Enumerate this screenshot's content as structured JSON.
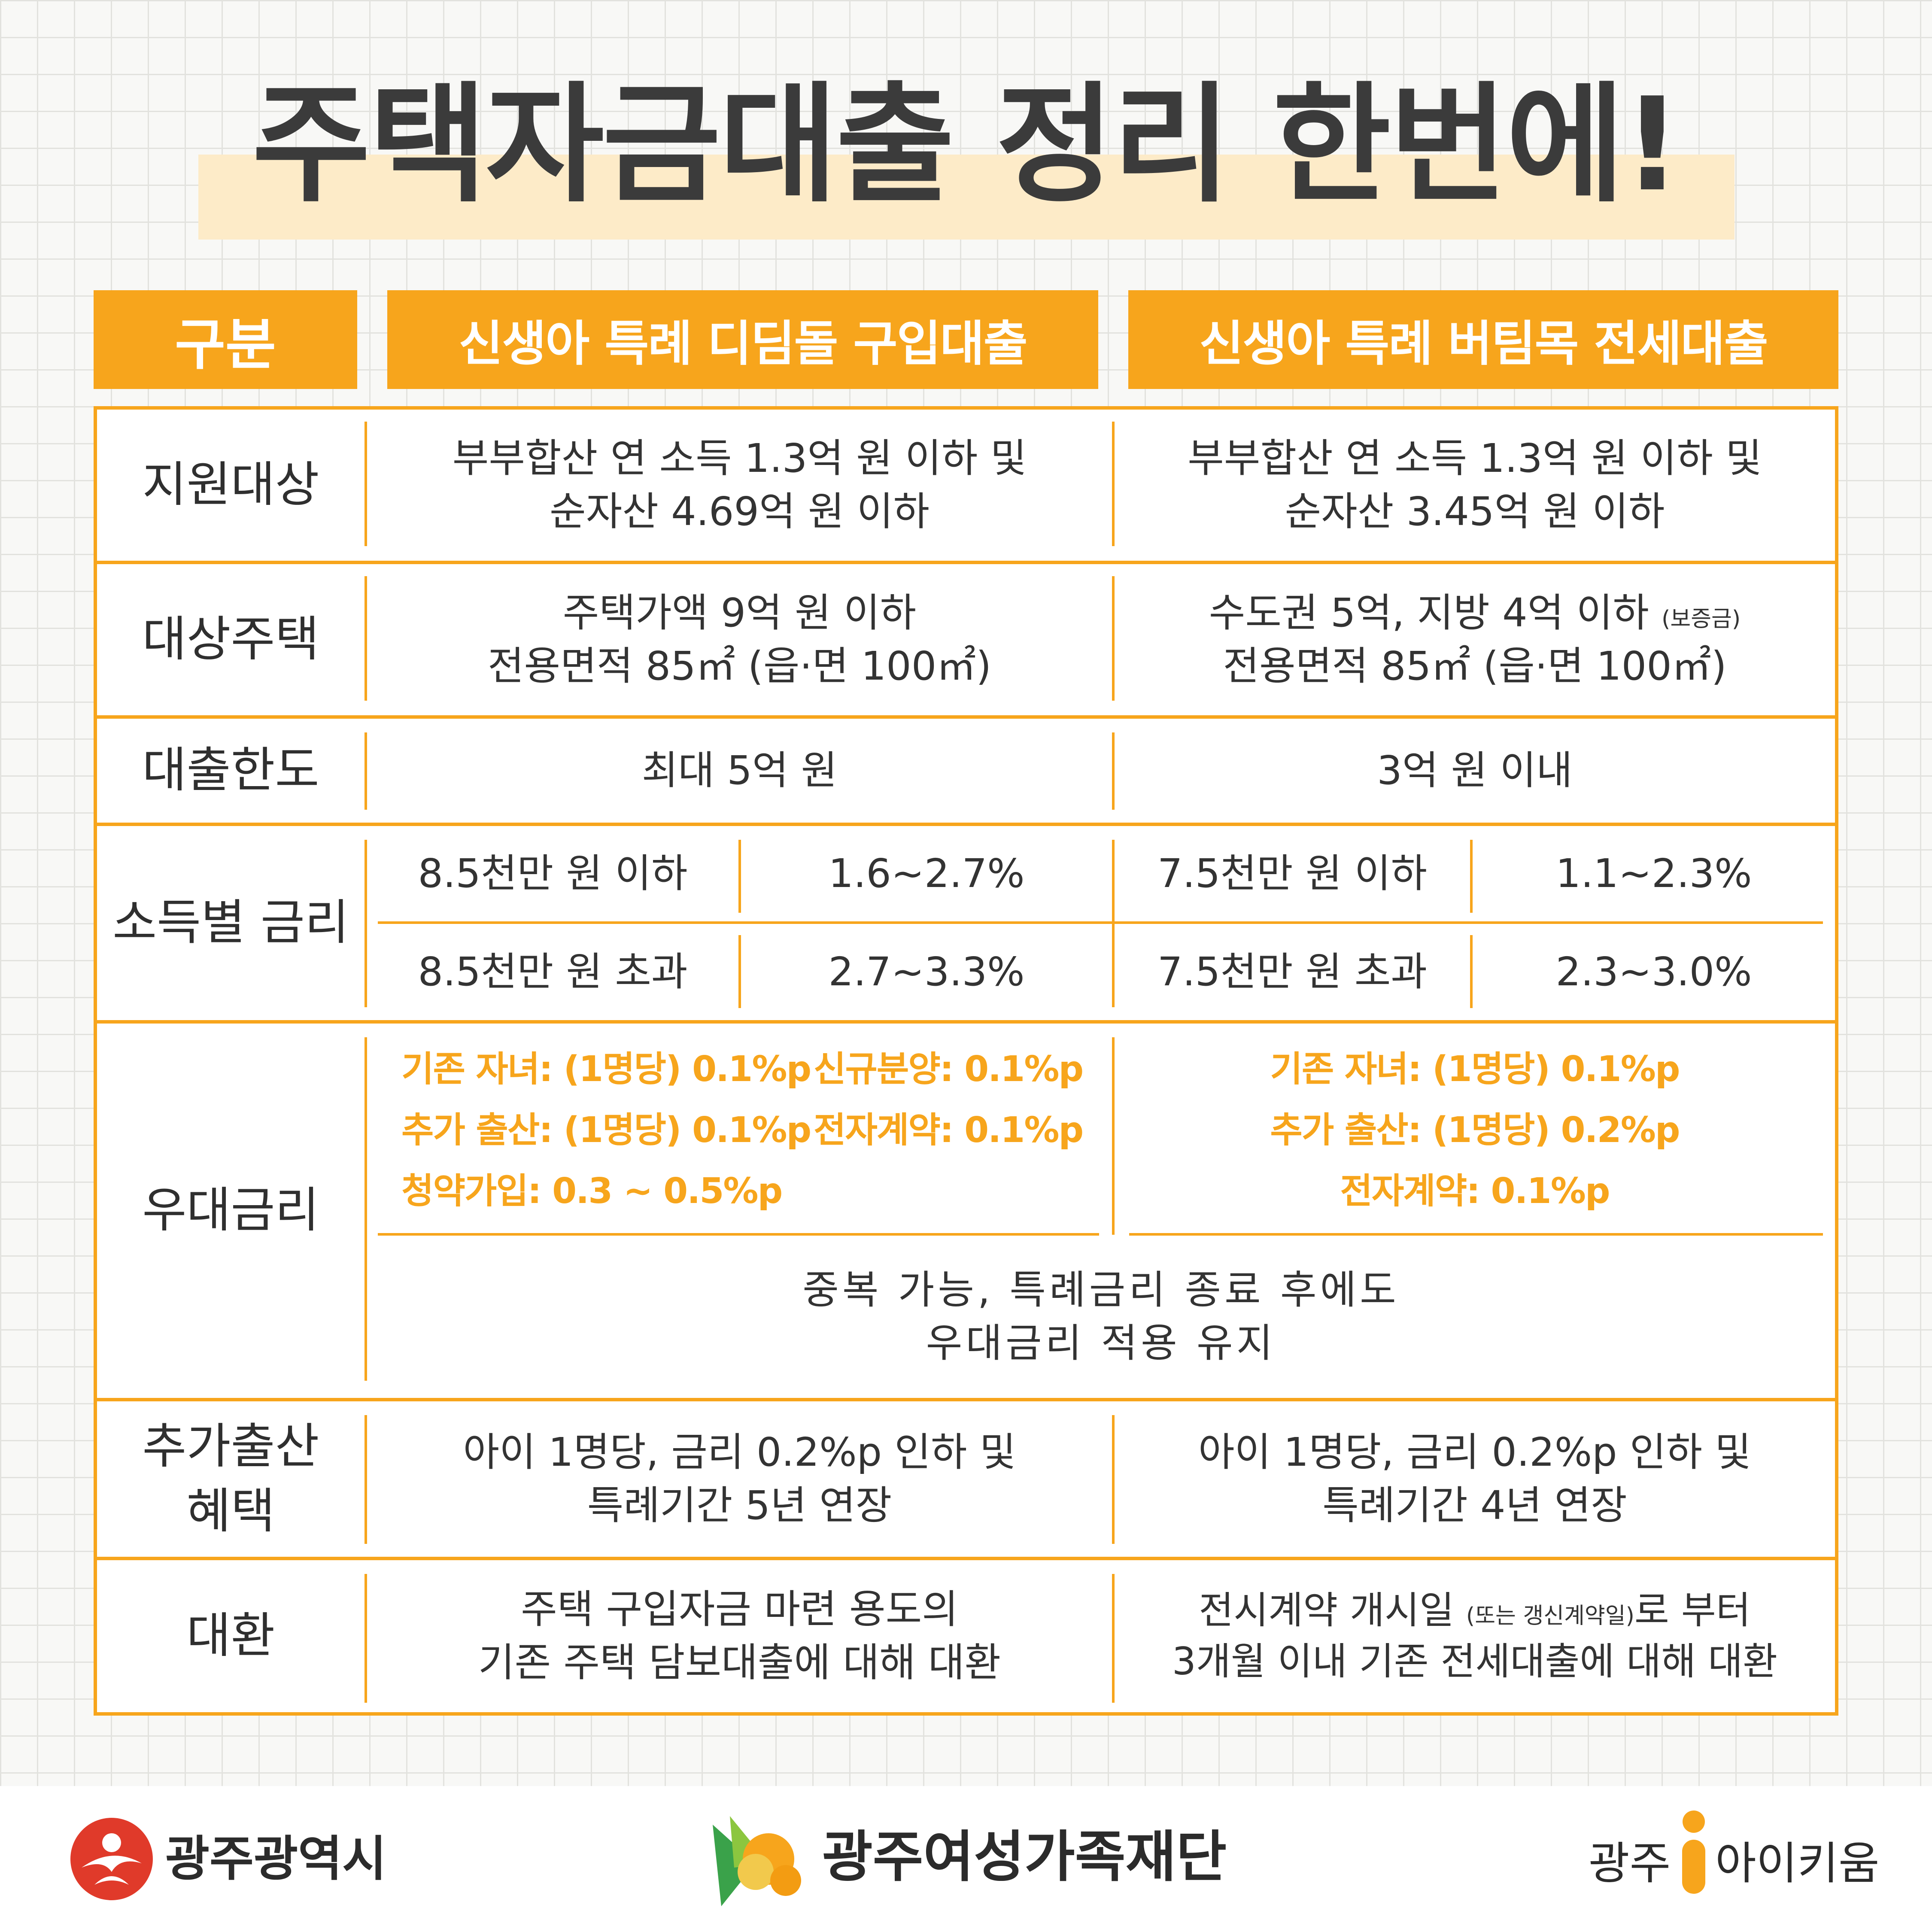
{
  "title": "주택자금대출 정리 한번에!",
  "headers": {
    "category": "구분",
    "col1": "신생아 특례 디딤돌 구입대출",
    "col2": "신생아 특례 버팀목 전세대출"
  },
  "rows": {
    "support_target": {
      "label": "지원대상",
      "col1": [
        "부부합산 연 소득 1.3억 원 이하 및",
        "순자산 4.69억 원 이하"
      ],
      "col2": [
        "부부합산 연 소득 1.3억 원 이하 및",
        "순자산 3.45억 원 이하"
      ]
    },
    "target_house": {
      "label": "대상주택",
      "col1": [
        "주택가액 9억 원 이하",
        "전용면적 85㎡ (읍·면 100㎡)"
      ],
      "col2_line1": "수도권 5억, 지방 4억 이하 ",
      "col2_line1_note": "(보증금)",
      "col2_line2": "전용면적 85㎡ (읍·면 100㎡)"
    },
    "loan_limit": {
      "label": "대출한도",
      "col1": "최대 5억 원",
      "col2": "3억 원 이내"
    },
    "income_rate": {
      "label": "소득별 금리",
      "col1": [
        {
          "income": "8.5천만 원 이하",
          "rate": "1.6~2.7%"
        },
        {
          "income": "8.5천만 원 초과",
          "rate": "2.7~3.3%"
        }
      ],
      "col2": [
        {
          "income": "7.5천만 원 이하",
          "rate": "1.1~2.3%"
        },
        {
          "income": "7.5천만 원 초과",
          "rate": "2.3~3.0%"
        }
      ]
    },
    "preferential_rate": {
      "label": "우대금리",
      "col1": {
        "left": [
          "기존 자녀: (1명당) 0.1%p",
          "추가 출산: (1명당) 0.1%p",
          "청약가입: 0.3 ~ 0.5%p"
        ],
        "right": [
          "신규분양: 0.1%p",
          "전자계약: 0.1%p"
        ]
      },
      "col2": [
        "기존 자녀: (1명당) 0.1%p",
        "추가 출산: (1명당) 0.2%p",
        "전자계약: 0.1%p"
      ],
      "common_note": [
        "중복 가능, 특례금리 종료 후에도",
        "우대금리 적용 유지"
      ]
    },
    "extra_birth": {
      "label": [
        "추가출산",
        "혜택"
      ],
      "col1": [
        "아이 1명당, 금리 0.2%p 인하 및",
        "특례기간 5년 연장"
      ],
      "col2": [
        "아이 1명당, 금리 0.2%p 인하 및",
        "특례기간 4년 연장"
      ]
    },
    "refinance": {
      "label": "대환",
      "col1": [
        "주택 구입자금 마련 용도의",
        "기존 주택 담보대출에 대해 대환"
      ],
      "col2_line1": "전시계약 개시일 ",
      "col2_line1_note": "(또는 갱신계약일)",
      "col2_line1_end": "로 부터",
      "col2_line2": "3개월 이내 기존 전세대출에 대해 대환"
    }
  },
  "footer": {
    "left": "광주광역시",
    "center": "광주여성가족재단",
    "right_prefix": "광주",
    "right_suffix": "아이키움"
  },
  "colors": {
    "accent": "#f7a51c",
    "title_highlight": "#fdebc8",
    "text": "#333333",
    "gwangju_red": "#e03a2a"
  }
}
